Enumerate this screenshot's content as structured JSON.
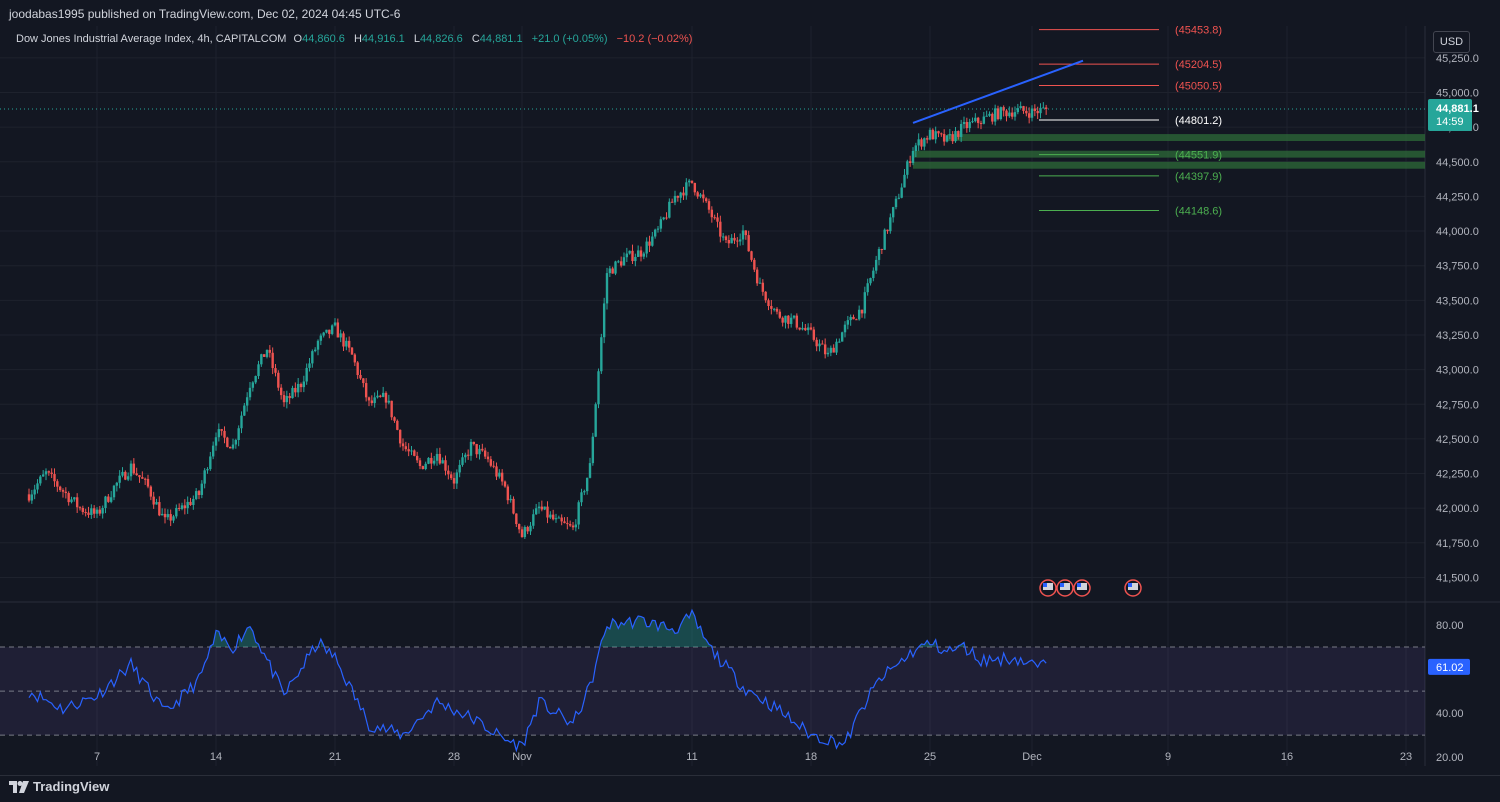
{
  "header": {
    "publisher_line": "joodabas1995 published on TradingView.com, Dec 02, 2024 04:45 UTC-6"
  },
  "legend": {
    "symbol": "Dow Jones Industrial Average Index, 4h, CAPITALCOM",
    "o_label": "O",
    "o_value": "44,860.6",
    "h_label": "H",
    "h_value": "44,916.1",
    "l_label": "L",
    "l_value": "44,826.6",
    "c_label": "C",
    "c_value": "44,881.1",
    "change": "+21.0 (+0.05%)",
    "change2": "−10.2 (−0.02%)"
  },
  "currency": "USD",
  "footer": {
    "brand": "TradingView"
  },
  "colors": {
    "up": "#26a69a",
    "down": "#ef5350",
    "rsi": "#2962ff",
    "trend": "#2962ff",
    "bg": "#131722"
  },
  "chart_data": {
    "type": "candlestick",
    "price_axis": {
      "ylim": [
        41330,
        45480
      ],
      "ticks": [
        "41,500.0",
        "41,750.0",
        "42,000.0",
        "42,250.0",
        "42,500.0",
        "42,750.0",
        "43,000.0",
        "43,250.0",
        "43,500.0",
        "43,750.0",
        "44,000.0",
        "44,250.0",
        "44,500.0",
        "44,750.0",
        "45,000.0",
        "45,250.0"
      ],
      "tick_values": [
        41500,
        41750,
        42000,
        42250,
        42500,
        42750,
        43000,
        43250,
        43500,
        43750,
        44000,
        44250,
        44500,
        44750,
        45000,
        45250
      ]
    },
    "last_price": {
      "value": "44,881.1",
      "countdown": "14:59"
    },
    "x_axis": {
      "labels": [
        "7",
        "14",
        "21",
        "28",
        "Nov",
        "11",
        "18",
        "25",
        "Dec",
        "9",
        "16",
        "23"
      ],
      "label_dates": [
        "2024-10-07",
        "2024-10-14",
        "2024-10-21",
        "2024-10-28",
        "2024-11-01",
        "2024-11-11",
        "2024-11-18",
        "2024-11-25",
        "2024-12-01",
        "2024-12-09",
        "2024-12-16",
        "2024-12-23"
      ]
    },
    "price_path": [
      [
        "2024-10-03",
        42100
      ],
      [
        "2024-10-04",
        42250
      ],
      [
        "2024-10-06",
        42000
      ],
      [
        "2024-10-07",
        41950
      ],
      [
        "2024-10-08",
        42150
      ],
      [
        "2024-10-09",
        42300
      ],
      [
        "2024-10-10",
        42150
      ],
      [
        "2024-10-11",
        41900
      ],
      [
        "2024-10-13",
        42100
      ],
      [
        "2024-10-14",
        42550
      ],
      [
        "2024-10-15",
        42450
      ],
      [
        "2024-10-16",
        42900
      ],
      [
        "2024-10-17",
        43150
      ],
      [
        "2024-10-18",
        42750
      ],
      [
        "2024-10-19",
        42900
      ],
      [
        "2024-10-20",
        43200
      ],
      [
        "2024-10-21",
        43300
      ],
      [
        "2024-10-22",
        43100
      ],
      [
        "2024-10-23",
        42750
      ],
      [
        "2024-10-24",
        42800
      ],
      [
        "2024-10-25",
        42450
      ],
      [
        "2024-10-26",
        42300
      ],
      [
        "2024-10-27",
        42400
      ],
      [
        "2024-10-28",
        42200
      ],
      [
        "2024-10-29",
        42450
      ],
      [
        "2024-10-30",
        42350
      ],
      [
        "2024-10-31",
        42150
      ],
      [
        "2024-11-01",
        41800
      ],
      [
        "2024-11-02",
        42000
      ],
      [
        "2024-11-03",
        41900
      ],
      [
        "2024-11-04",
        41850
      ],
      [
        "2024-11-05",
        42300
      ],
      [
        "2024-11-06",
        43700
      ],
      [
        "2024-11-07",
        43800
      ],
      [
        "2024-11-08",
        43850
      ],
      [
        "2024-11-09",
        44000
      ],
      [
        "2024-11-10",
        44250
      ],
      [
        "2024-11-11",
        44350
      ],
      [
        "2024-11-12",
        44150
      ],
      [
        "2024-11-13",
        43900
      ],
      [
        "2024-11-14",
        44000
      ],
      [
        "2024-11-15",
        43600
      ],
      [
        "2024-11-16",
        43400
      ],
      [
        "2024-11-17",
        43350
      ],
      [
        "2024-11-18",
        43250
      ],
      [
        "2024-11-19",
        43100
      ],
      [
        "2024-11-20",
        43300
      ],
      [
        "2024-11-21",
        43450
      ],
      [
        "2024-11-22",
        43850
      ],
      [
        "2024-11-23",
        44200
      ],
      [
        "2024-11-24",
        44600
      ],
      [
        "2024-11-25",
        44700
      ],
      [
        "2024-11-26",
        44650
      ],
      [
        "2024-11-27",
        44750
      ],
      [
        "2024-11-28",
        44800
      ],
      [
        "2024-11-29",
        44850
      ],
      [
        "2024-11-30",
        44870
      ],
      [
        "2024-12-01",
        44860
      ],
      [
        "2024-12-02",
        44881
      ]
    ],
    "levels": [
      {
        "label": "(45453.8)",
        "value": 45453.8,
        "color": "#ef5350"
      },
      {
        "label": "(45204.5)",
        "value": 45204.5,
        "color": "#ef5350"
      },
      {
        "label": "(45050.5)",
        "value": 45050.5,
        "color": "#ef5350"
      },
      {
        "label": "(44801.2)",
        "value": 44801.2,
        "color": "#ffffff"
      },
      {
        "label": "(44551.9)",
        "value": 44551.9,
        "color": "#4caf50"
      },
      {
        "label": "(44397.9)",
        "value": 44397.9,
        "color": "#4caf50"
      },
      {
        "label": "(44148.6)",
        "value": 44148.6,
        "color": "#4caf50"
      }
    ],
    "zones": [
      {
        "from": 44650,
        "to": 44700
      },
      {
        "from": 44530,
        "to": 44580
      },
      {
        "from": 44450,
        "to": 44500
      }
    ],
    "trendline": [
      [
        "2024-11-24",
        44780
      ],
      [
        "2024-12-04",
        45230
      ]
    ],
    "rsi": {
      "ylim": [
        16,
        90
      ],
      "ticks": [
        "20.00",
        "40.00",
        "80.00"
      ],
      "tick_values": [
        20,
        40,
        80
      ],
      "bands": [
        70,
        50,
        30
      ],
      "current": "61.02",
      "path": [
        [
          "2024-10-03",
          50
        ],
        [
          "2024-10-05",
          42
        ],
        [
          "2024-10-07",
          48
        ],
        [
          "2024-10-09",
          62
        ],
        [
          "2024-10-11",
          40
        ],
        [
          "2024-10-13",
          55
        ],
        [
          "2024-10-14",
          75
        ],
        [
          "2024-10-15",
          70
        ],
        [
          "2024-10-16",
          80
        ],
        [
          "2024-10-18",
          48
        ],
        [
          "2024-10-20",
          72
        ],
        [
          "2024-10-21",
          65
        ],
        [
          "2024-10-23",
          35
        ],
        [
          "2024-10-25",
          30
        ],
        [
          "2024-10-27",
          45
        ],
        [
          "2024-10-29",
          38
        ],
        [
          "2024-10-31",
          28
        ],
        [
          "2024-11-01",
          25
        ],
        [
          "2024-11-02",
          45
        ],
        [
          "2024-11-04",
          35
        ],
        [
          "2024-11-05",
          52
        ],
        [
          "2024-11-06",
          80
        ],
        [
          "2024-11-08",
          82
        ],
        [
          "2024-11-10",
          78
        ],
        [
          "2024-11-11",
          84
        ],
        [
          "2024-11-12",
          70
        ],
        [
          "2024-11-14",
          52
        ],
        [
          "2024-11-16",
          42
        ],
        [
          "2024-11-18",
          30
        ],
        [
          "2024-11-19",
          28
        ],
        [
          "2024-11-20",
          26
        ],
        [
          "2024-11-21",
          42
        ],
        [
          "2024-11-22",
          55
        ],
        [
          "2024-11-24",
          68
        ],
        [
          "2024-11-25",
          72
        ],
        [
          "2024-11-26",
          68
        ],
        [
          "2024-11-27",
          70
        ],
        [
          "2024-11-28",
          64
        ],
        [
          "2024-11-30",
          65
        ],
        [
          "2024-12-01",
          62
        ],
        [
          "2024-12-02",
          61
        ]
      ]
    },
    "event_markers": [
      [
        "2024-12-01"
      ],
      [
        "2024-12-02"
      ],
      [
        "2024-12-03"
      ],
      [
        "2024-12-06"
      ]
    ]
  }
}
